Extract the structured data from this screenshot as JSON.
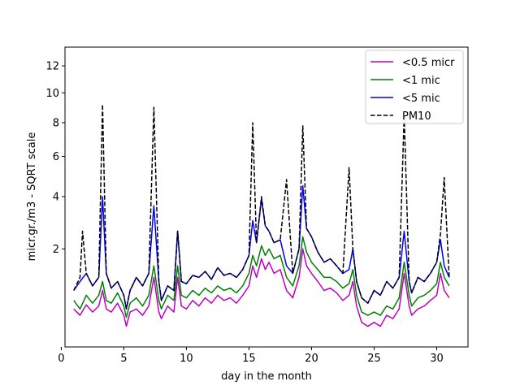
{
  "chart_data": {
    "type": "line",
    "title": "",
    "xlabel": "day in the month",
    "ylabel": "micr.gr./m3 - SQRT scale",
    "y_scale": "sqrt",
    "xlim": [
      0.3,
      32.5
    ],
    "ylim": [
      0.1,
      13.5
    ],
    "x_ticks": [
      0,
      5,
      10,
      15,
      20,
      25,
      30
    ],
    "y_ticks": [
      2,
      4,
      6,
      8,
      10,
      12
    ],
    "legend_position": "top-right",
    "grid": false,
    "series": [
      {
        "name": "<0.5 micr",
        "color": "#bf00bf",
        "dash": "solid",
        "x": [
          1,
          1.5,
          2,
          2.5,
          3,
          3.3,
          3.6,
          4,
          4.5,
          5,
          5.2,
          5.5,
          6,
          6.5,
          7,
          7.4,
          7.8,
          8,
          8.5,
          9,
          9.3,
          9.6,
          10,
          10.5,
          11,
          11.5,
          12,
          12.5,
          13,
          13.5,
          14,
          14.5,
          15,
          15.3,
          15.6,
          16,
          16.3,
          16.6,
          17,
          17.5,
          18,
          18.5,
          19,
          19.3,
          19.6,
          20,
          20.5,
          21,
          21.5,
          22,
          22.5,
          23,
          23.3,
          23.6,
          24,
          24.5,
          25,
          25.5,
          26,
          26.5,
          27,
          27.4,
          27.8,
          28,
          28.5,
          29,
          29.5,
          30,
          30.3,
          30.6,
          31
        ],
        "values": [
          0.55,
          0.45,
          0.62,
          0.5,
          0.6,
          0.9,
          0.55,
          0.5,
          0.65,
          0.45,
          0.3,
          0.5,
          0.55,
          0.45,
          0.6,
          1.2,
          0.5,
          0.4,
          0.6,
          0.5,
          1.2,
          0.6,
          0.55,
          0.7,
          0.6,
          0.75,
          0.65,
          0.8,
          0.7,
          0.75,
          0.65,
          0.8,
          1.0,
          1.5,
          1.2,
          1.7,
          1.4,
          1.6,
          1.3,
          1.4,
          0.9,
          0.75,
          1.2,
          2.0,
          1.5,
          1.3,
          1.1,
          0.9,
          0.95,
          0.85,
          0.7,
          0.8,
          1.1,
          0.6,
          0.35,
          0.3,
          0.35,
          0.3,
          0.45,
          0.4,
          0.55,
          1.3,
          0.6,
          0.45,
          0.55,
          0.6,
          0.7,
          0.8,
          1.3,
          0.9,
          0.75
        ]
      },
      {
        "name": "<1 mic",
        "color": "#008000",
        "dash": "solid",
        "x": [
          1,
          1.5,
          2,
          2.5,
          3,
          3.3,
          3.6,
          4,
          4.5,
          5,
          5.2,
          5.5,
          6,
          6.5,
          7,
          7.4,
          7.8,
          8,
          8.5,
          9,
          9.3,
          9.6,
          10,
          10.5,
          11,
          11.5,
          12,
          12.5,
          13,
          13.5,
          14,
          14.5,
          15,
          15.3,
          15.6,
          16,
          16.3,
          16.6,
          17,
          17.5,
          18,
          18.5,
          19,
          19.3,
          19.6,
          20,
          20.5,
          21,
          21.5,
          22,
          22.5,
          23,
          23.3,
          23.6,
          24,
          24.5,
          25,
          25.5,
          26,
          26.5,
          27,
          27.4,
          27.8,
          28,
          28.5,
          29,
          29.5,
          30,
          30.3,
          30.6,
          31
        ],
        "values": [
          0.7,
          0.55,
          0.8,
          0.65,
          0.8,
          1.1,
          0.7,
          0.65,
          0.85,
          0.6,
          0.42,
          0.65,
          0.75,
          0.6,
          0.8,
          1.5,
          0.7,
          0.55,
          0.8,
          0.7,
          1.5,
          0.8,
          0.75,
          0.9,
          0.8,
          0.95,
          0.85,
          1.0,
          0.9,
          0.95,
          0.85,
          1.0,
          1.3,
          1.8,
          1.5,
          2.1,
          1.8,
          2.0,
          1.7,
          1.8,
          1.2,
          1.0,
          1.5,
          2.4,
          1.9,
          1.6,
          1.4,
          1.2,
          1.2,
          1.1,
          0.95,
          1.05,
          1.4,
          0.8,
          0.5,
          0.45,
          0.5,
          0.45,
          0.6,
          0.55,
          0.75,
          1.6,
          0.8,
          0.6,
          0.75,
          0.8,
          0.9,
          1.05,
          1.6,
          1.2,
          1.0
        ]
      },
      {
        "name": "<5 mic",
        "color": "#0000ff",
        "dash": "solid",
        "x": [
          1,
          1.5,
          2,
          2.5,
          3,
          3.3,
          3.6,
          4,
          4.5,
          5,
          5.2,
          5.5,
          6,
          6.5,
          7,
          7.4,
          7.8,
          8,
          8.5,
          9,
          9.3,
          9.6,
          10,
          10.5,
          11,
          11.5,
          12,
          12.5,
          13,
          13.5,
          14,
          14.5,
          15,
          15.3,
          15.6,
          16,
          16.3,
          16.6,
          17,
          17.5,
          18,
          18.5,
          19,
          19.3,
          19.6,
          20,
          20.5,
          21,
          21.5,
          22,
          22.5,
          23,
          23.3,
          23.6,
          24,
          24.5,
          25,
          25.5,
          26,
          26.5,
          27,
          27.4,
          27.8,
          28,
          28.5,
          29,
          29.5,
          30,
          30.3,
          30.6,
          31
        ],
        "values": [
          0.9,
          1.1,
          1.3,
          1.0,
          1.2,
          4.0,
          1.3,
          0.95,
          1.1,
          0.8,
          0.55,
          0.9,
          1.2,
          1.0,
          1.3,
          3.6,
          1.1,
          0.7,
          1.0,
          0.9,
          2.6,
          1.1,
          1.05,
          1.25,
          1.2,
          1.35,
          1.15,
          1.45,
          1.25,
          1.3,
          1.2,
          1.4,
          1.8,
          3.0,
          2.2,
          3.9,
          2.8,
          2.6,
          2.2,
          2.3,
          1.5,
          1.3,
          2.0,
          4.5,
          2.7,
          2.4,
          1.9,
          1.6,
          1.7,
          1.5,
          1.3,
          1.4,
          2.0,
          1.1,
          0.75,
          0.65,
          0.9,
          0.8,
          1.1,
          0.95,
          1.2,
          2.6,
          1.1,
          0.85,
          1.2,
          1.1,
          1.3,
          1.6,
          2.3,
          1.5,
          1.2
        ]
      },
      {
        "name": "PM10",
        "color": "#000000",
        "dash": "dashed",
        "x": [
          1,
          1.5,
          1.7,
          2,
          2.5,
          3,
          3.3,
          3.6,
          4,
          4.5,
          5,
          5.2,
          5.5,
          6,
          6.5,
          7,
          7.4,
          7.8,
          8,
          8.5,
          9,
          9.3,
          9.6,
          10,
          10.5,
          11,
          11.5,
          12,
          12.5,
          13,
          13.5,
          14,
          14.5,
          15,
          15.3,
          15.6,
          16,
          16.3,
          16.6,
          17,
          17.5,
          18,
          18.5,
          19,
          19.3,
          19.6,
          20,
          20.5,
          21,
          21.5,
          22,
          22.5,
          23,
          23.3,
          23.6,
          24,
          24.5,
          25,
          25.5,
          26,
          26.5,
          27,
          27.4,
          27.8,
          28,
          28.5,
          29,
          29.5,
          30,
          30.3,
          30.6,
          31
        ],
        "values": [
          0.9,
          1.2,
          2.6,
          1.3,
          1.0,
          1.2,
          9.2,
          1.3,
          0.95,
          1.1,
          0.8,
          0.55,
          0.9,
          1.2,
          1.0,
          1.3,
          9.0,
          1.1,
          0.7,
          1.0,
          0.9,
          2.6,
          1.1,
          1.05,
          1.25,
          1.2,
          1.35,
          1.15,
          1.45,
          1.25,
          1.3,
          1.2,
          1.4,
          1.8,
          8.0,
          2.2,
          4.0,
          2.8,
          2.6,
          2.2,
          2.3,
          4.8,
          1.3,
          2.0,
          7.8,
          2.7,
          2.4,
          1.9,
          1.6,
          1.7,
          1.5,
          1.3,
          5.4,
          2.0,
          1.1,
          0.75,
          0.65,
          0.9,
          0.8,
          1.1,
          0.95,
          1.2,
          8.5,
          1.1,
          0.85,
          1.2,
          1.1,
          1.3,
          1.6,
          2.5,
          4.9,
          1.2
        ]
      }
    ]
  }
}
